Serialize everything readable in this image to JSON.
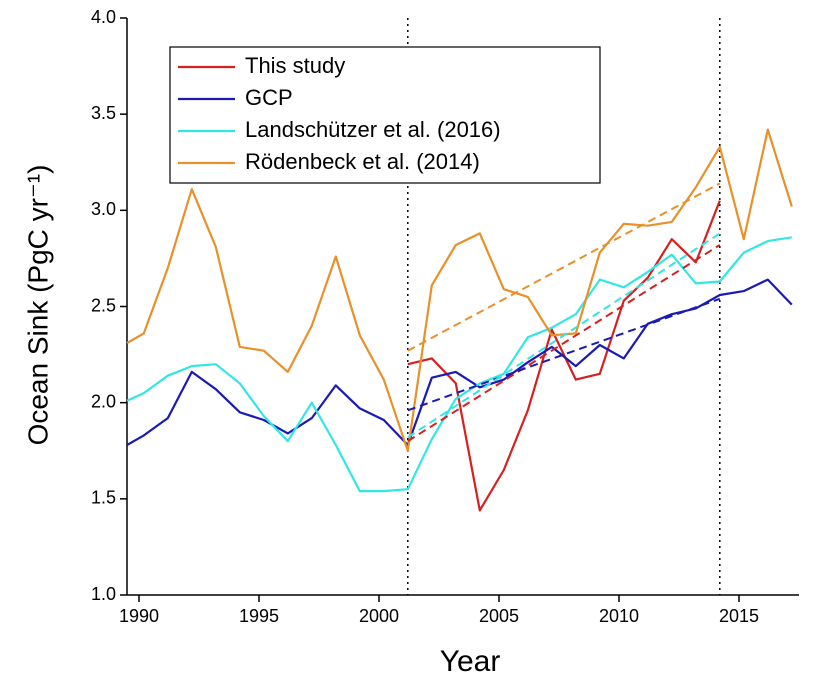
{
  "chart_data": {
    "type": "line",
    "xlabel": "Year",
    "ylabel": "Ocean Sink (PgC yr⁻¹)",
    "x": [
      1989.5,
      1990.2,
      1991.2,
      1992.2,
      1993.2,
      1994.2,
      1995.2,
      1996.2,
      1997.2,
      1998.2,
      1999.2,
      2000.2,
      2001.2,
      2002.2,
      2003.2,
      2004.2,
      2005.2,
      2006.2,
      2007.2,
      2008.2,
      2009.2,
      2010.2,
      2011.2,
      2012.2,
      2013.2,
      2014.2,
      2015.2,
      2016.2,
      2017.2
    ],
    "series": [
      {
        "name": "This study",
        "color": "#d62020",
        "values": [
          null,
          null,
          null,
          null,
          null,
          null,
          null,
          null,
          null,
          null,
          null,
          null,
          2.2,
          2.23,
          2.1,
          1.44,
          1.65,
          1.96,
          2.38,
          2.12,
          2.15,
          2.53,
          2.65,
          2.85,
          2.73,
          3.05,
          null,
          null,
          null
        ]
      },
      {
        "name": "GCP",
        "color": "#1a1ab4",
        "values": [
          1.78,
          1.83,
          1.92,
          2.16,
          2.07,
          1.95,
          1.91,
          1.84,
          1.92,
          2.09,
          1.97,
          1.91,
          1.78,
          2.13,
          2.16,
          2.08,
          2.12,
          2.21,
          2.29,
          2.19,
          2.3,
          2.23,
          2.41,
          2.46,
          2.49,
          2.56,
          2.58,
          2.64,
          2.51
        ]
      },
      {
        "name": "Landschützer et al. (2016)",
        "color": "#33e6e6",
        "values": [
          2.01,
          2.05,
          2.14,
          2.19,
          2.2,
          2.1,
          1.93,
          1.8,
          2.0,
          1.78,
          1.54,
          1.54,
          1.55,
          1.81,
          2.02,
          2.1,
          2.15,
          2.34,
          2.39,
          2.46,
          2.64,
          2.6,
          2.68,
          2.77,
          2.62,
          2.63,
          2.78,
          2.84,
          2.86
        ]
      },
      {
        "name": "Rödenbeck et al. (2014)",
        "color": "#e8902a",
        "values": [
          2.31,
          2.36,
          2.7,
          3.11,
          2.81,
          2.29,
          2.27,
          2.16,
          2.4,
          2.76,
          2.35,
          2.12,
          1.75,
          2.61,
          2.82,
          2.88,
          2.59,
          2.55,
          2.35,
          2.36,
          2.78,
          2.93,
          2.92,
          2.94,
          3.12,
          3.33,
          2.85,
          3.42,
          3.02
        ]
      }
    ],
    "trend_lines": [
      {
        "color": "#d62020",
        "x": [
          2001.2,
          2014.2
        ],
        "values": [
          1.8,
          2.82
        ]
      },
      {
        "color": "#1a1ab4",
        "x": [
          2001.2,
          2014.2
        ],
        "values": [
          1.96,
          2.54
        ]
      },
      {
        "color": "#33e6e6",
        "x": [
          2001.2,
          2014.2
        ],
        "values": [
          1.82,
          2.88
        ]
      },
      {
        "color": "#e8902a",
        "x": [
          2001.2,
          2014.2
        ],
        "values": [
          2.27,
          3.14
        ]
      }
    ],
    "vlines": [
      2001.2,
      2014.2
    ],
    "xlim": [
      1989.5,
      2017.5
    ],
    "xticks": [
      1990,
      1995,
      2000,
      2005,
      2010,
      2015
    ],
    "ylim": [
      1.0,
      4.0
    ],
    "yticks": [
      {
        "value": 1.0,
        "label": "1.0"
      },
      1.5,
      {
        "value": 2.0,
        "label": "2.0"
      },
      2.5,
      {
        "value": 3.0,
        "label": "3.0"
      },
      3.5,
      {
        "value": 4.0,
        "label": "4.0"
      }
    ],
    "legend": "upper left"
  }
}
